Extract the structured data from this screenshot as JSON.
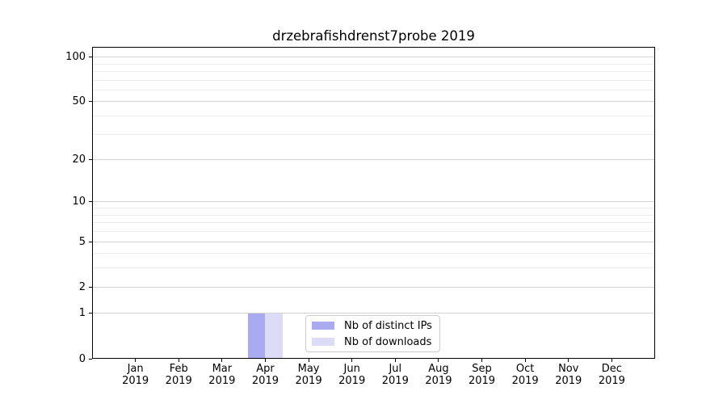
{
  "title": "drzebrafishdrenst7probe 2019",
  "chart_data": {
    "type": "bar",
    "title": "drzebrafishdrenst7probe 2019",
    "categories": [
      "Jan",
      "Feb",
      "Mar",
      "Apr",
      "May",
      "Jun",
      "Jul",
      "Aug",
      "Sep",
      "Oct",
      "Nov",
      "Dec"
    ],
    "x_year_label": "2019",
    "series": [
      {
        "name": "Nb of distinct IPs",
        "color": "#aaaaf0",
        "values": [
          0,
          0,
          0,
          1,
          0,
          0,
          0,
          0,
          0,
          0,
          0,
          0
        ]
      },
      {
        "name": "Nb of downloads",
        "color": "#dcdcf8",
        "values": [
          0,
          0,
          0,
          1,
          0,
          0,
          0,
          0,
          0,
          0,
          0,
          0
        ]
      }
    ],
    "xlabel": "",
    "ylabel": "",
    "y_scale": "log1p",
    "y_major_ticks": [
      0,
      1,
      2,
      5,
      10,
      20,
      50,
      100
    ],
    "y_minor_gridlines": [
      3,
      4,
      6,
      7,
      8,
      9,
      30,
      40,
      60,
      70,
      80,
      90
    ],
    "ylim": [
      0,
      117
    ],
    "grid": "horizontal",
    "legend_position": "inside-bottom-center"
  },
  "colors": {
    "bar_distinct_ips": "#aaaaf0",
    "bar_downloads": "#dcdcf8",
    "grid_major": "#d2d2d2",
    "grid_minor": "#ededed",
    "axis": "#000000",
    "legend_border": "#cccccc",
    "background": "#ffffff"
  }
}
